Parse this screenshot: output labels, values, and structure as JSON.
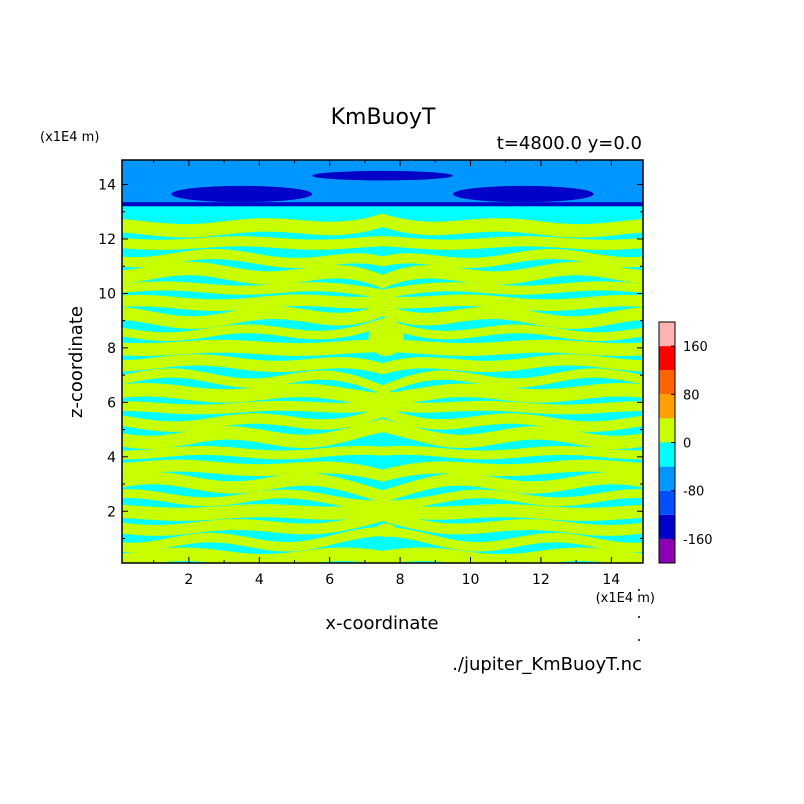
{
  "chart_data": {
    "type": "heatmap",
    "title": "KmBuoyT",
    "subtitle": "t=4800.0 y=0.0",
    "xlabel": "x-coordinate",
    "ylabel": "z-coordinate",
    "x_unit": "(x1E4 m)",
    "y_unit": "(x1E4 m)",
    "xlim": [
      0.1,
      14.9
    ],
    "ylim": [
      0.1,
      14.9
    ],
    "x_ticks": [
      2,
      4,
      6,
      8,
      10,
      12,
      14
    ],
    "y_ticks": [
      2,
      4,
      6,
      8,
      10,
      12,
      14
    ],
    "x_tick_labels": [
      "2",
      "4",
      "6",
      "8",
      "10",
      "12",
      "14"
    ],
    "y_tick_labels": [
      "2",
      "4",
      "6",
      "8",
      "10",
      "12",
      "14"
    ],
    "colorbar": {
      "levels": [
        -200,
        -160,
        -120,
        -80,
        -40,
        0,
        40,
        80,
        120,
        160,
        200
      ],
      "colors": [
        "#8c00b4",
        "#0000c8",
        "#0050ff",
        "#0096ff",
        "#00ffff",
        "#c8ff00",
        "#ffa000",
        "#ff6400",
        "#ff0000",
        "#ffb4b4"
      ],
      "tick_values": [
        160,
        80,
        0,
        -80,
        -160
      ],
      "tick_labels": [
        "160",
        "80",
        "0",
        "-80",
        "-160"
      ]
    },
    "bands": [
      {
        "z0": 13.3,
        "z1": 14.9,
        "value": -60
      },
      {
        "z0": 12.2,
        "z1": 13.3,
        "value": -20
      },
      {
        "z0": 9.0,
        "z1": 12.2,
        "value": -20
      },
      {
        "z0": 0.1,
        "z1": 9.0,
        "value": -20
      }
    ],
    "features": [
      {
        "kind": "strong_negative_lens",
        "x": [
          1.5,
          5.5
        ],
        "z": [
          13.35,
          13.95
        ],
        "value": -140
      },
      {
        "kind": "strong_negative_lens",
        "x": [
          9.5,
          13.5
        ],
        "z": [
          13.35,
          13.95
        ],
        "value": -140
      },
      {
        "kind": "strong_negative_lens",
        "x": [
          5.5,
          9.5
        ],
        "z": [
          14.15,
          14.5
        ],
        "value": -140
      },
      {
        "kind": "strong_negative_band",
        "x": [
          0.1,
          14.9
        ],
        "z": [
          13.2,
          13.35
        ],
        "value": -140
      },
      {
        "kind": "positive_streaks",
        "x": [
          0.1,
          14.9
        ],
        "z": [
          0.1,
          12.6
        ],
        "value": 20
      }
    ],
    "source_file": "./jupiter_KmBuoyT.nc"
  }
}
